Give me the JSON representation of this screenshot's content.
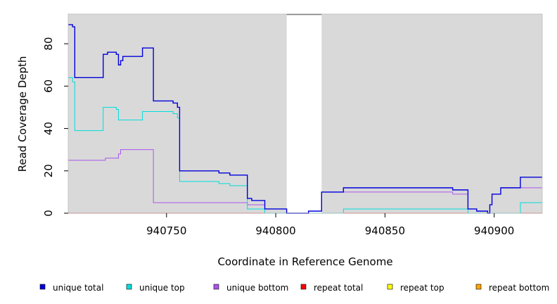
{
  "chart_data": {
    "type": "line",
    "title": "",
    "xlabel": "Coordinate in Reference Genome",
    "ylabel": "Read Coverage Depth",
    "xlim": [
      940705,
      940922
    ],
    "ylim": [
      0,
      94
    ],
    "xticks": [
      940750,
      940800,
      940850,
      940900
    ],
    "yticks": [
      0,
      20,
      40,
      60,
      80
    ],
    "background": "#d9d9d9",
    "uncovered_gap": [
      940805,
      940821
    ],
    "legend_position": "bottom",
    "series": [
      {
        "name": "unique total",
        "color": "#0000dd",
        "points": [
          [
            940705,
            89
          ],
          [
            940707,
            89
          ],
          [
            940707,
            88
          ],
          [
            940708,
            88
          ],
          [
            940708,
            64
          ],
          [
            940721,
            64
          ],
          [
            940721,
            75
          ],
          [
            940723,
            75
          ],
          [
            940723,
            76
          ],
          [
            940727,
            76
          ],
          [
            940727,
            75
          ],
          [
            940728,
            75
          ],
          [
            940728,
            70
          ],
          [
            940729,
            70
          ],
          [
            940729,
            72
          ],
          [
            940730,
            72
          ],
          [
            940730,
            74
          ],
          [
            940739,
            74
          ],
          [
            940739,
            78
          ],
          [
            940744,
            78
          ],
          [
            940744,
            53
          ],
          [
            940753,
            53
          ],
          [
            940753,
            52
          ],
          [
            940755,
            52
          ],
          [
            940755,
            50
          ],
          [
            940756,
            50
          ],
          [
            940756,
            20
          ],
          [
            940774,
            20
          ],
          [
            940774,
            19
          ],
          [
            940779,
            19
          ],
          [
            940779,
            18
          ],
          [
            940787,
            18
          ],
          [
            940787,
            7
          ],
          [
            940789,
            7
          ],
          [
            940789,
            6
          ],
          [
            940795,
            6
          ],
          [
            940795,
            2
          ],
          [
            940805,
            2
          ],
          [
            940805,
            0
          ],
          [
            940815,
            0
          ],
          [
            940815,
            1
          ],
          [
            940821,
            1
          ],
          [
            940821,
            10
          ],
          [
            940831,
            10
          ],
          [
            940831,
            12
          ],
          [
            940881,
            12
          ],
          [
            940881,
            11
          ],
          [
            940888,
            11
          ],
          [
            940888,
            2
          ],
          [
            940892,
            2
          ],
          [
            940892,
            1
          ],
          [
            940897,
            1
          ],
          [
            940897,
            0
          ],
          [
            940898,
            0
          ],
          [
            940898,
            4
          ],
          [
            940899,
            4
          ],
          [
            940899,
            9
          ],
          [
            940903,
            9
          ],
          [
            940903,
            12
          ],
          [
            940912,
            12
          ],
          [
            940912,
            17
          ],
          [
            940922,
            17
          ]
        ]
      },
      {
        "name": "unique top",
        "color": "#00dddd",
        "points": [
          [
            940705,
            64
          ],
          [
            940707,
            64
          ],
          [
            940707,
            62
          ],
          [
            940708,
            62
          ],
          [
            940708,
            39
          ],
          [
            940721,
            39
          ],
          [
            940721,
            50
          ],
          [
            940727,
            50
          ],
          [
            940727,
            49
          ],
          [
            940728,
            49
          ],
          [
            940728,
            44
          ],
          [
            940739,
            44
          ],
          [
            940739,
            48
          ],
          [
            940753,
            48
          ],
          [
            940753,
            47
          ],
          [
            940755,
            47
          ],
          [
            940755,
            45
          ],
          [
            940756,
            45
          ],
          [
            940756,
            15
          ],
          [
            940774,
            15
          ],
          [
            940774,
            14
          ],
          [
            940779,
            14
          ],
          [
            940779,
            13
          ],
          [
            940787,
            13
          ],
          [
            940787,
            2
          ],
          [
            940795,
            2
          ],
          [
            940795,
            0
          ],
          [
            940831,
            0
          ],
          [
            940831,
            2
          ],
          [
            940888,
            2
          ],
          [
            940888,
            0
          ],
          [
            940912,
            0
          ],
          [
            940912,
            5
          ],
          [
            940922,
            5
          ]
        ]
      },
      {
        "name": "unique bottom",
        "color": "#aa55ee",
        "points": [
          [
            940705,
            25
          ],
          [
            940722,
            25
          ],
          [
            940722,
            26
          ],
          [
            940728,
            26
          ],
          [
            940728,
            28
          ],
          [
            940729,
            28
          ],
          [
            940729,
            30
          ],
          [
            940744,
            30
          ],
          [
            940744,
            5
          ],
          [
            940787,
            5
          ],
          [
            940787,
            4
          ],
          [
            940795,
            4
          ],
          [
            940795,
            2
          ],
          [
            940805,
            2
          ],
          [
            940805,
            0
          ],
          [
            940815,
            0
          ],
          [
            940815,
            1
          ],
          [
            940821,
            1
          ],
          [
            940821,
            10
          ],
          [
            940881,
            10
          ],
          [
            940881,
            9
          ],
          [
            940888,
            9
          ],
          [
            940888,
            2
          ],
          [
            940892,
            2
          ],
          [
            940892,
            1
          ],
          [
            940897,
            1
          ],
          [
            940897,
            0
          ],
          [
            940898,
            0
          ],
          [
            940898,
            4
          ],
          [
            940899,
            4
          ],
          [
            940899,
            9
          ],
          [
            940903,
            9
          ],
          [
            940903,
            12
          ],
          [
            940922,
            12
          ]
        ]
      },
      {
        "name": "repeat total",
        "color": "#ff0000",
        "points": [
          [
            940705,
            0
          ],
          [
            940922,
            0
          ]
        ]
      },
      {
        "name": "repeat top",
        "color": "#ffff00",
        "points": [
          [
            940705,
            0
          ],
          [
            940922,
            0
          ]
        ]
      },
      {
        "name": "repeat bottom",
        "color": "#ffa500",
        "points": [
          [
            940705,
            0
          ],
          [
            940922,
            0
          ]
        ]
      }
    ]
  }
}
